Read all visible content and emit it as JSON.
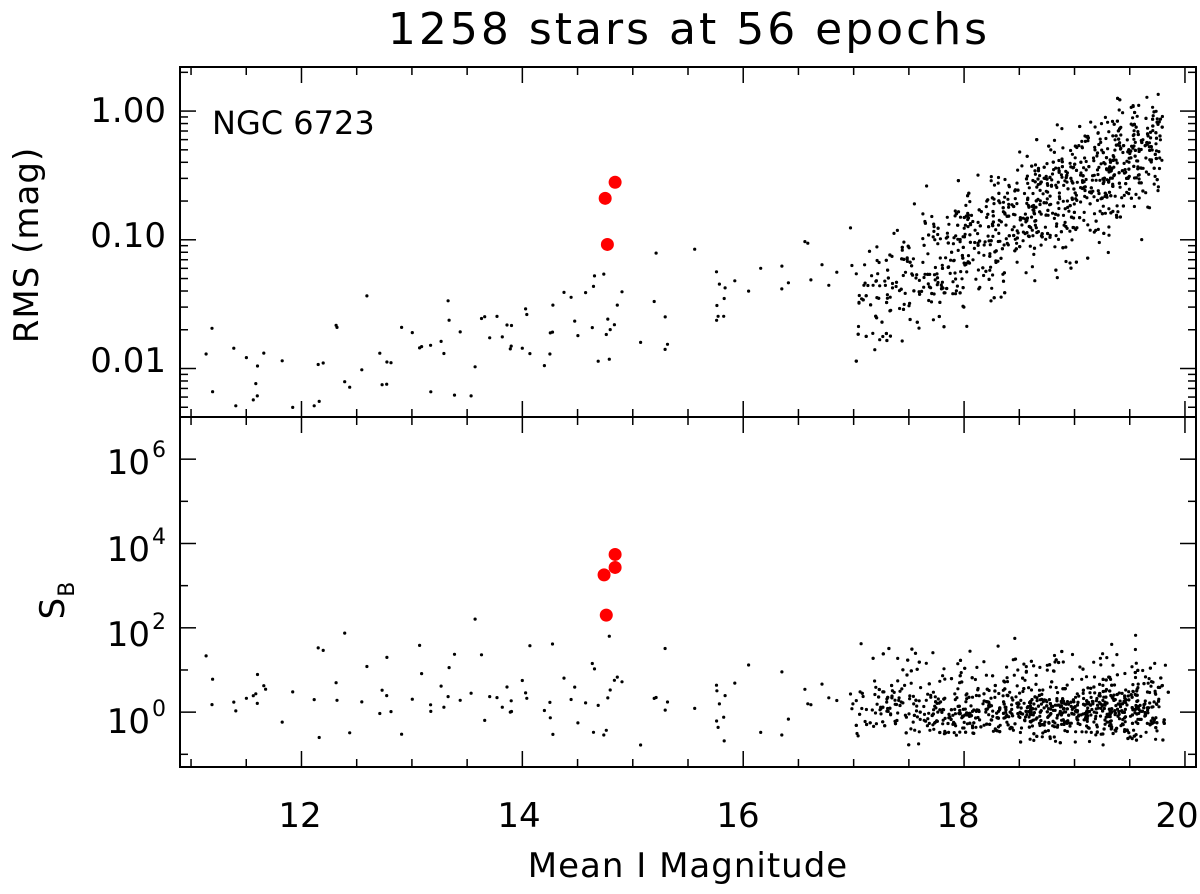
{
  "chart_data": {
    "title": "1258 stars at 56 epochs",
    "xlabel": "Mean I Magnitude",
    "xlim": [
      10.9,
      20.1
    ],
    "xticks": [
      "12",
      "14",
      "16",
      "18",
      "20"
    ],
    "panels": [
      {
        "type": "scatter",
        "ylabel": "RMS (mag)",
        "yscale": "log",
        "ylim": [
          0.0042,
          2.2
        ],
        "yticks": [
          "1.00",
          "0.10",
          "0.01"
        ],
        "annotation": "NGC 6723",
        "highlight_color": "#ff0000",
        "highlight_points": [
          {
            "x": 14.75,
            "y": 0.21
          },
          {
            "x": 14.84,
            "y": 0.28
          },
          {
            "x": 14.77,
            "y": 0.092
          }
        ],
        "background_point_color": "#000000",
        "background_points_described": 1258
      },
      {
        "type": "scatter",
        "ylabel": "S",
        "ylabel_subscript": "B",
        "yscale": "log",
        "ylim": [
          0.05,
          10000000.0
        ],
        "yticks": [
          {
            "base": "10",
            "exp": "6"
          },
          {
            "base": "10",
            "exp": "4"
          },
          {
            "base": "10",
            "exp": "2"
          },
          {
            "base": "10",
            "exp": "0"
          }
        ],
        "highlight_color": "#ff0000",
        "highlight_points": [
          {
            "x": 14.84,
            "y": 5500
          },
          {
            "x": 14.84,
            "y": 2700
          },
          {
            "x": 14.74,
            "y": 1800
          },
          {
            "x": 14.76,
            "y": 200
          }
        ],
        "background_point_color": "#000000"
      }
    ]
  }
}
